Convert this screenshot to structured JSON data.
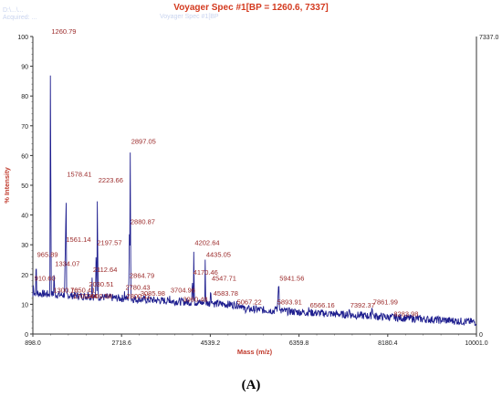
{
  "header": {
    "title": "Voyager Spec #1[BP = 1260.6, 7337]",
    "faint_left_1": "D:\\...\\...",
    "faint_left_2": "Acquired: ...",
    "faint_center": "Voyager Spec #1[BP"
  },
  "caption": "(A)",
  "chart_data": {
    "type": "line",
    "title": "Voyager Spec #1[BP = 1260.6, 7337]",
    "xlabel": "Mass (m/z)",
    "ylabel": "% Intensity",
    "xlim": [
      898.0,
      10001.0
    ],
    "ylim": [
      0,
      100
    ],
    "x_ticks": [
      "898.0",
      "2718.6",
      "4539.2",
      "6359.8",
      "8180.4",
      "10001.0"
    ],
    "y_ticks": [
      "0",
      "10",
      "20",
      "30",
      "40",
      "50",
      "60",
      "70",
      "80",
      "90",
      "100"
    ],
    "right_axis_max_label": "7337.0",
    "right_axis_min_label": "0",
    "line_color": "#1f1f8f",
    "label_color": "#9b2a2a",
    "peaks": [
      {
        "mz": 965.89,
        "intensity": 25,
        "label": "965.89"
      },
      {
        "mz": 1260.79,
        "intensity": 100,
        "label": "1260.79"
      },
      {
        "mz": 1578.41,
        "intensity": 52,
        "label": "1578.41"
      },
      {
        "mz": 1561.14,
        "intensity": 30,
        "label": "1561.14"
      },
      {
        "mz": 1334.07,
        "intensity": 22,
        "label": "1334.07"
      },
      {
        "mz": 2223.66,
        "intensity": 50,
        "label": "2223.66"
      },
      {
        "mz": 2197.57,
        "intensity": 29,
        "label": "2197.57"
      },
      {
        "mz": 2897.05,
        "intensity": 63,
        "label": "2897.05"
      },
      {
        "mz": 2880.87,
        "intensity": 36,
        "label": "2880.87"
      },
      {
        "mz": 2112.64,
        "intensity": 20,
        "label": "2112.64"
      },
      {
        "mz": 2864.79,
        "intensity": 18,
        "label": "2864.79"
      },
      {
        "mz": 4202.64,
        "intensity": 29,
        "label": "4202.64"
      },
      {
        "mz": 4435.05,
        "intensity": 25,
        "label": "4435.05"
      },
      {
        "mz": 4170.46,
        "intensity": 19,
        "label": "4170.46"
      },
      {
        "mz": 4547.71,
        "intensity": 17,
        "label": "4547.71"
      },
      {
        "mz": 3704.96,
        "intensity": 13,
        "label": "3704.96"
      },
      {
        "mz": 5941.56,
        "intensity": 17,
        "label": "5941.56"
      },
      {
        "mz": 6566.16,
        "intensity": 8,
        "label": "6566.16"
      },
      {
        "mz": 7392.37,
        "intensity": 8,
        "label": "7392.37"
      },
      {
        "mz": 7861.99,
        "intensity": 9,
        "label": "7861.99"
      },
      {
        "mz": 8283.98,
        "intensity": 5,
        "label": "8283.98"
      },
      {
        "mz": 5067.22,
        "intensity": 9,
        "label": "5067.22"
      },
      {
        "mz": 5893.91,
        "intensity": 9,
        "label": "5893.91"
      },
      {
        "mz": 910.6,
        "intensity": 17,
        "label": "910.60"
      },
      {
        "mz": 1300,
        "intensity": 13,
        "label": "1300.70"
      },
      {
        "mz": 1650,
        "intensity": 13,
        "label": "1650.41"
      },
      {
        "mz": 1700,
        "intensity": 11,
        "label": "1700.44"
      },
      {
        "mz": 2030,
        "intensity": 15,
        "label": "2030.51"
      },
      {
        "mz": 2000,
        "intensity": 11,
        "label": "2000.58"
      },
      {
        "mz": 2780,
        "intensity": 14,
        "label": "2780.43"
      },
      {
        "mz": 2800,
        "intensity": 11,
        "label": "2800.11"
      },
      {
        "mz": 3085.98,
        "intensity": 12,
        "label": "3085.98"
      },
      {
        "mz": 3960,
        "intensity": 10,
        "label": "3960.48"
      },
      {
        "mz": 4583.78,
        "intensity": 12,
        "label": "4583.78"
      }
    ]
  }
}
